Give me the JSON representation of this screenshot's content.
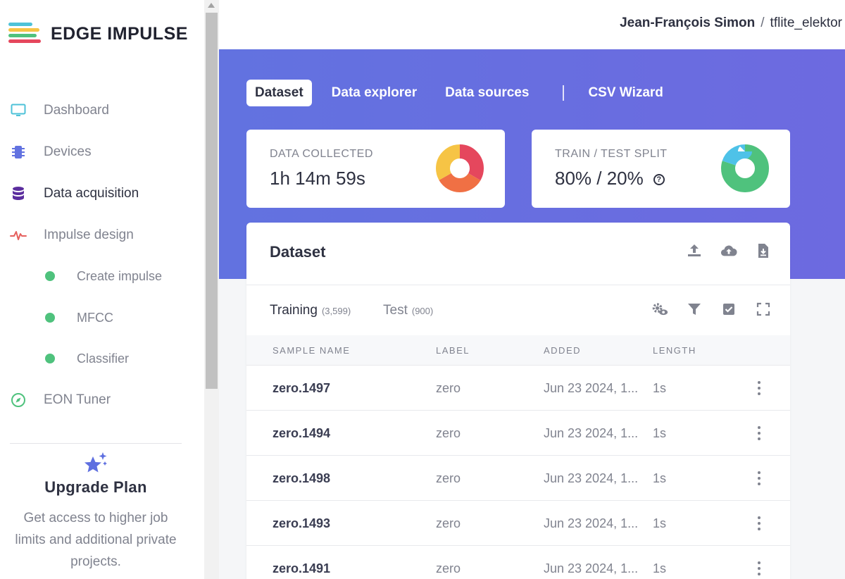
{
  "brand": {
    "name": "EDGE IMPULSE",
    "logo_colors": [
      "#4ec2d8",
      "#f6c445",
      "#4fc27d",
      "#e5475d"
    ]
  },
  "colors": {
    "accent": "#6272e0",
    "green": "#4fc27d"
  },
  "sidebar": {
    "items": [
      {
        "label": "Dashboard",
        "icon": "monitor-icon"
      },
      {
        "label": "Devices",
        "icon": "chip-icon"
      },
      {
        "label": "Data acquisition",
        "icon": "database-icon",
        "active": true
      },
      {
        "label": "Impulse design",
        "icon": "pulse-icon"
      }
    ],
    "subitems": [
      {
        "label": "Create impulse"
      },
      {
        "label": "MFCC"
      },
      {
        "label": "Classifier"
      }
    ],
    "eon": {
      "label": "EON Tuner",
      "icon": "compass-icon"
    }
  },
  "upgrade": {
    "title": "Upgrade Plan",
    "text": "Get access to higher job limits and additional private projects."
  },
  "breadcrumb": {
    "user": "Jean-François Simon",
    "separator": "/",
    "project": "tflite_elektor"
  },
  "tabs": [
    "Dataset",
    "Data explorer",
    "Data sources",
    "CSV Wizard"
  ],
  "stats": {
    "collected": {
      "label": "DATA COLLECTED",
      "value": "1h 14m 59s"
    },
    "split": {
      "label": "TRAIN / TEST SPLIT",
      "value": "80% / 20%",
      "train_fraction": 0.8,
      "test_fraction": 0.2
    }
  },
  "dataset": {
    "title": "Dataset",
    "subtabs": {
      "training": "Training",
      "training_count": "(3,599)",
      "test": "Test",
      "test_count": "(900)"
    },
    "columns": [
      "SAMPLE NAME",
      "LABEL",
      "ADDED",
      "LENGTH"
    ],
    "rows": [
      {
        "name": "zero.1497",
        "label": "zero",
        "added": "Jun 23 2024, 1...",
        "length": "1s"
      },
      {
        "name": "zero.1494",
        "label": "zero",
        "added": "Jun 23 2024, 1...",
        "length": "1s"
      },
      {
        "name": "zero.1498",
        "label": "zero",
        "added": "Jun 23 2024, 1...",
        "length": "1s"
      },
      {
        "name": "zero.1493",
        "label": "zero",
        "added": "Jun 23 2024, 1...",
        "length": "1s"
      },
      {
        "name": "zero.1491",
        "label": "zero",
        "added": "Jun 23 2024, 1...",
        "length": "1s"
      }
    ]
  }
}
